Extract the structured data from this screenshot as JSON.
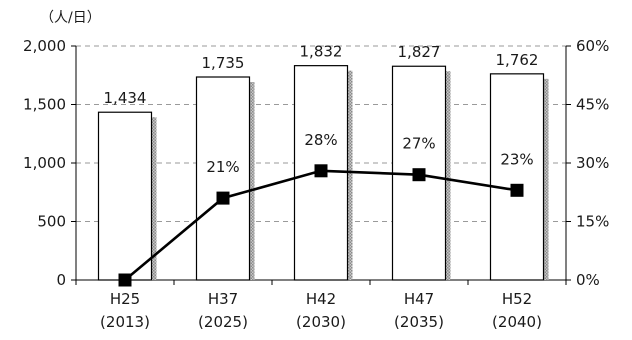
{
  "chart_data": {
    "type": "bar+line",
    "unit_label": "（人/日）",
    "categories": [
      {
        "era": "H25",
        "year": "(2013)"
      },
      {
        "era": "H37",
        "year": "(2025)"
      },
      {
        "era": "H42",
        "year": "(2030)"
      },
      {
        "era": "H47",
        "year": "(2035)"
      },
      {
        "era": "H52",
        "year": "(2040)"
      }
    ],
    "bar_values": [
      1434,
      1735,
      1832,
      1827,
      1762
    ],
    "bar_labels": [
      "1,434",
      "1,735",
      "1,832",
      "1,827",
      "1,762"
    ],
    "line_values": [
      0,
      21,
      28,
      27,
      23
    ],
    "line_labels": [
      "",
      "21%",
      "28%",
      "27%",
      "23%"
    ],
    "y_left": {
      "min": 0,
      "max": 2000,
      "ticks": [
        0,
        500,
        1000,
        1500,
        2000
      ],
      "tick_labels": [
        "0",
        "500",
        "1,000",
        "1,500",
        "2,000"
      ]
    },
    "y_right": {
      "min": 0,
      "max": 60,
      "ticks": [
        0,
        15,
        30,
        45,
        60
      ],
      "tick_labels": [
        "0%",
        "15%",
        "30%",
        "45%",
        "60%"
      ]
    },
    "grid": true,
    "grid_style": "dashed",
    "colors": {
      "bar_fill": "#ffffff",
      "bar_stroke": "#000000",
      "bar_shadow": "#9a9a9a",
      "line": "#000000",
      "marker": "#000000",
      "grid": "#9a9a9a",
      "axis": "#000000",
      "text": "#1a1a1a"
    }
  }
}
